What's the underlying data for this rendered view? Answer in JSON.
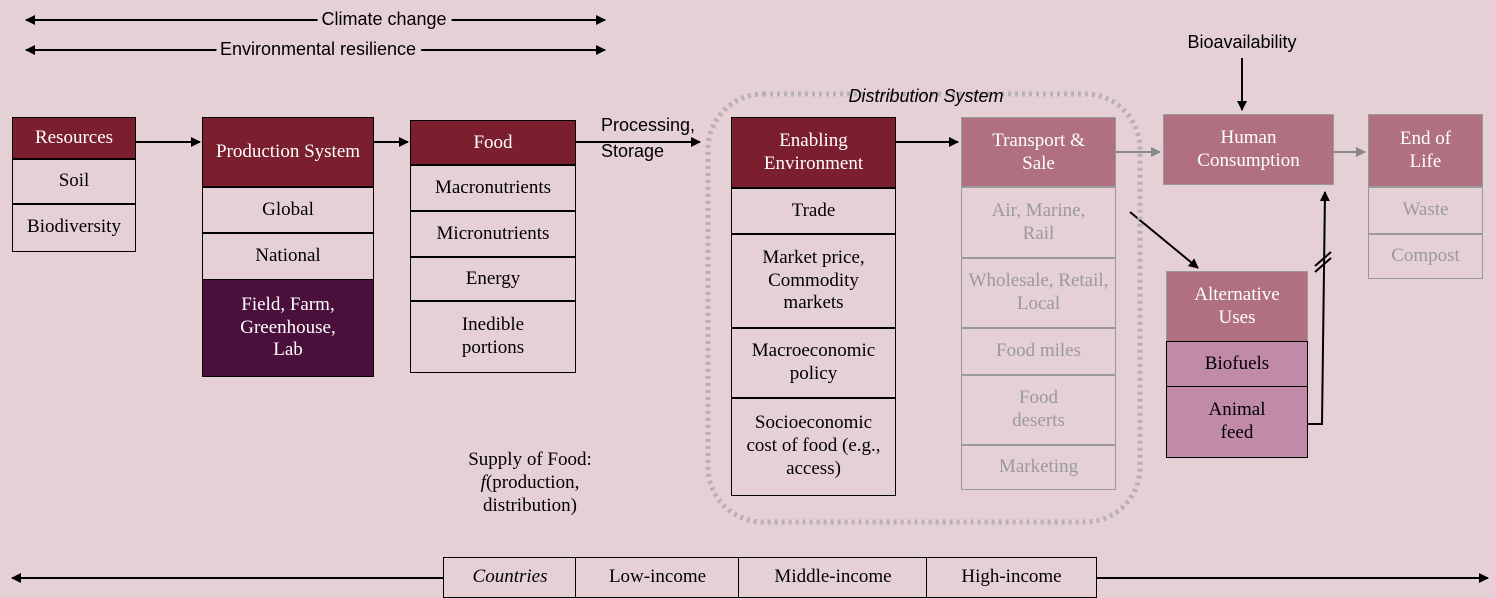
{
  "top_arrows": [
    "Climate change",
    "Environmental resilience"
  ],
  "bioavailability": "Bioavailability",
  "processing": [
    "Processing,",
    "Storage"
  ],
  "distribution_system": "Distribution System",
  "blocks": [
    {
      "header": "Resources",
      "items": [
        "Soil",
        "Biodiversity"
      ]
    },
    {
      "header": "Production System",
      "items": [
        "Global",
        "National",
        "Field, Farm, Greenhouse, Lab"
      ]
    },
    {
      "header": "Food",
      "items": [
        "Macronutrients",
        "Micronutrients",
        "Energy",
        "Inedible portions"
      ]
    },
    {
      "header": "Enabling Environment",
      "items": [
        "Trade",
        "Market price, Commodity markets",
        "Macroeconomic policy",
        "Socioeconomic cost of food (e.g., access)"
      ]
    },
    {
      "header": "Transport & Sale",
      "items": [
        "Air, Marine, Rail",
        "Wholesale, Retail, Local",
        "Food miles",
        "Food deserts",
        "Marketing"
      ]
    },
    {
      "header": "Human Consumption",
      "items": []
    },
    {
      "header": "End of Life",
      "items": [
        "Waste",
        "Compost"
      ]
    },
    {
      "header": "Alternative Uses",
      "items": [
        "Biofuels",
        "Animal feed"
      ]
    }
  ],
  "supply_note": {
    "line1": "Supply of Food:",
    "f": "f",
    "line2": "(production,",
    "line3": "distribution)"
  },
  "countries": [
    "Countries",
    "Low-income",
    "Middle-income",
    "High-income"
  ]
}
